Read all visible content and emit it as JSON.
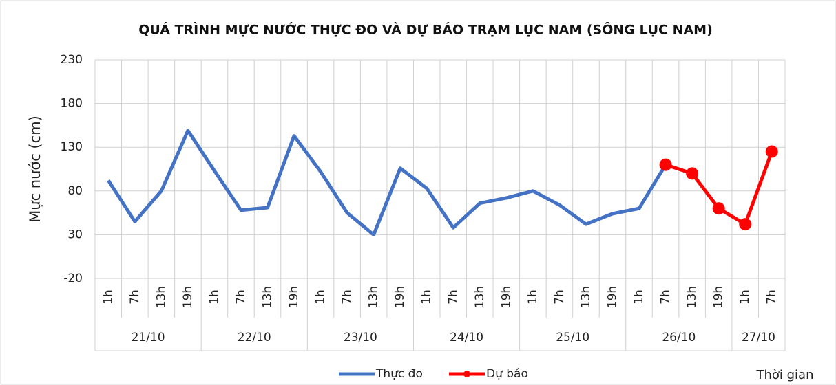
{
  "chart_data": {
    "type": "line",
    "title": "QUÁ TRÌNH MỰC NƯỚC THỰC ĐO VÀ DỰ BÁO TRẠM LỤC NAM (SÔNG LỤC NAM)",
    "y_label": "Mực nước (cm)",
    "x_label": "Thời gian",
    "categories": [
      "1h",
      "7h",
      "13h",
      "19h",
      "1h",
      "7h",
      "13h",
      "19h",
      "1h",
      "7h",
      "13h",
      "19h",
      "1h",
      "7h",
      "13h",
      "19h",
      "1h",
      "7h",
      "13h",
      "19h",
      "1h",
      "7h",
      "13h",
      "19h",
      "1h",
      "7h"
    ],
    "groups": [
      {
        "label": "21/10",
        "count": 4
      },
      {
        "label": "22/10",
        "count": 4
      },
      {
        "label": "23/10",
        "count": 4
      },
      {
        "label": "24/10",
        "count": 4
      },
      {
        "label": "25/10",
        "count": 4
      },
      {
        "label": "26/10",
        "count": 4
      },
      {
        "label": "27/10",
        "count": 2
      }
    ],
    "series": [
      {
        "name": "Thực đo",
        "color": "#4472c4",
        "marker": false,
        "values": [
          92,
          45,
          80,
          149,
          103,
          58,
          61,
          143,
          102,
          55,
          30,
          106,
          83,
          38,
          66,
          72,
          80,
          64,
          42,
          54,
          60,
          110,
          null,
          null,
          null,
          null
        ]
      },
      {
        "name": "Dự báo",
        "color": "#ff0000",
        "marker": true,
        "values": [
          null,
          null,
          null,
          null,
          null,
          null,
          null,
          null,
          null,
          null,
          null,
          null,
          null,
          null,
          null,
          null,
          null,
          null,
          null,
          null,
          null,
          110,
          100,
          60,
          42,
          125
        ]
      }
    ],
    "ylim": [
      -20,
      230
    ],
    "yticks": [
      -20,
      30,
      80,
      130,
      180,
      230
    ],
    "grid": true
  }
}
